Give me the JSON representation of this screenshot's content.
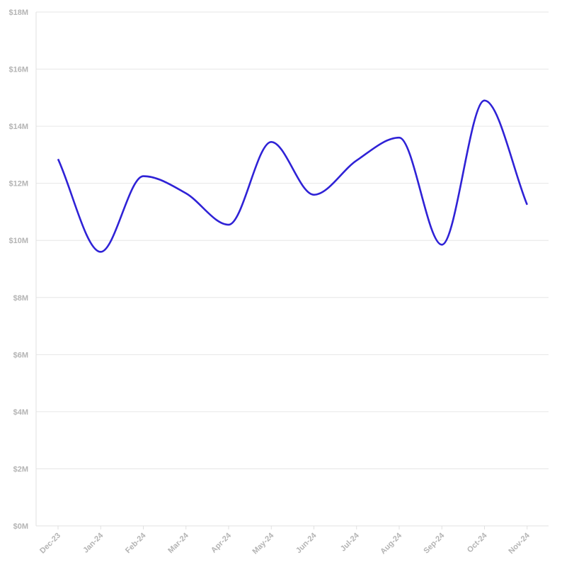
{
  "chart_data": {
    "type": "line",
    "title": "",
    "xlabel": "",
    "ylabel": "",
    "categories": [
      "Dec-23",
      "Jan-24",
      "Feb-24",
      "Mar-24",
      "Apr-24",
      "May-24",
      "Jun-24",
      "Jul-24",
      "Aug-24",
      "Sep-24",
      "Oct-24",
      "Nov-24"
    ],
    "series": [
      {
        "values": [
          12.85,
          9.6,
          12.25,
          11.65,
          10.55,
          13.45,
          11.6,
          12.8,
          13.6,
          9.85,
          14.9,
          11.25
        ],
        "color": "#2f22d6"
      }
    ],
    "y_ticks": [
      0,
      2,
      4,
      6,
      8,
      10,
      12,
      14,
      16,
      18
    ],
    "y_tick_labels": [
      "$0M",
      "$2M",
      "$4M",
      "$6M",
      "$8M",
      "$10M",
      "$12M",
      "$14M",
      "$16M",
      "$18M"
    ],
    "ylim": [
      0,
      18
    ],
    "grid": true,
    "smooth": true,
    "legend": "none"
  }
}
